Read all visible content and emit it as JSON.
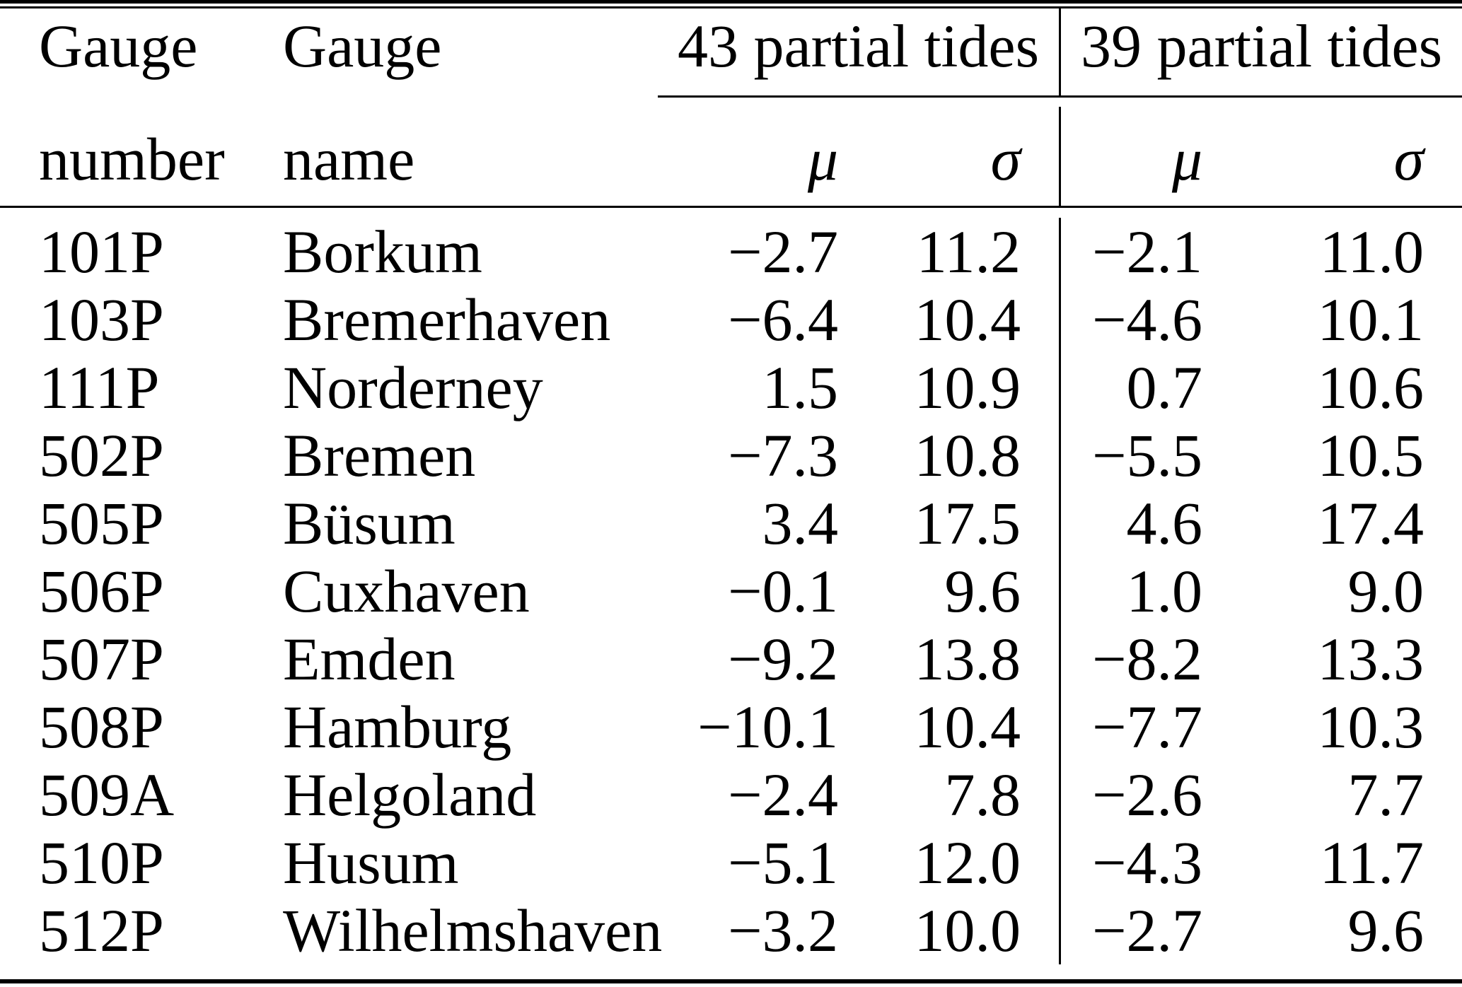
{
  "table": {
    "header": {
      "col1_line1": "Gauge",
      "col1_line2": "number",
      "col2_line1": "Gauge",
      "col2_line2": "name",
      "group1_label": "43 partial tides",
      "group2_label": "39 partial tides",
      "mu_symbol": "μ",
      "sigma_symbol": "σ"
    },
    "rows": [
      {
        "number": "101P",
        "name": "Borkum",
        "mu43": "−2.7",
        "sigma43": "11.2",
        "mu39": "−2.1",
        "sigma39": "11.0"
      },
      {
        "number": "103P",
        "name": "Bremerhaven",
        "mu43": "−6.4",
        "sigma43": "10.4",
        "mu39": "−4.6",
        "sigma39": "10.1"
      },
      {
        "number": "111P",
        "name": "Norderney",
        "mu43": "1.5",
        "sigma43": "10.9",
        "mu39": "0.7",
        "sigma39": "10.6"
      },
      {
        "number": "502P",
        "name": "Bremen",
        "mu43": "−7.3",
        "sigma43": "10.8",
        "mu39": "−5.5",
        "sigma39": "10.5"
      },
      {
        "number": "505P",
        "name": "Büsum",
        "mu43": "3.4",
        "sigma43": "17.5",
        "mu39": "4.6",
        "sigma39": "17.4"
      },
      {
        "number": "506P",
        "name": "Cuxhaven",
        "mu43": "−0.1",
        "sigma43": "9.6",
        "mu39": "1.0",
        "sigma39": "9.0"
      },
      {
        "number": "507P",
        "name": "Emden",
        "mu43": "−9.2",
        "sigma43": "13.8",
        "mu39": "−8.2",
        "sigma39": "13.3"
      },
      {
        "number": "508P",
        "name": "Hamburg",
        "mu43": "−10.1",
        "sigma43": "10.4",
        "mu39": "−7.7",
        "sigma39": "10.3"
      },
      {
        "number": "509A",
        "name": "Helgoland",
        "mu43": "−2.4",
        "sigma43": "7.8",
        "mu39": "−2.6",
        "sigma39": "7.7"
      },
      {
        "number": "510P",
        "name": "Husum",
        "mu43": "−5.1",
        "sigma43": "12.0",
        "mu39": "−4.3",
        "sigma39": "11.7"
      },
      {
        "number": "512P",
        "name": "Wilhelmshaven",
        "mu43": "−3.2",
        "sigma43": "10.0",
        "mu39": "−2.7",
        "sigma39": "9.6"
      }
    ],
    "colors": {
      "text": "#000000",
      "background": "#ffffff",
      "rule": "#000000"
    }
  }
}
